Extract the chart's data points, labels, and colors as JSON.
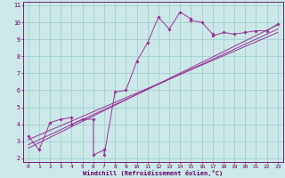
{
  "xlabel": "Windchill (Refroidissement éolien,°C)",
  "bg_color": "#cce8e8",
  "grid_color": "#99cccc",
  "line_color": "#993399",
  "spine_color": "#660066",
  "xlim": [
    -0.5,
    23.5
  ],
  "ylim": [
    1.8,
    11.2
  ],
  "xticks": [
    0,
    1,
    2,
    3,
    4,
    5,
    6,
    7,
    8,
    9,
    10,
    11,
    12,
    13,
    14,
    15,
    16,
    17,
    18,
    19,
    20,
    21,
    22,
    23
  ],
  "yticks": [
    2,
    3,
    4,
    5,
    6,
    7,
    8,
    9,
    10,
    11
  ],
  "scatter_x": [
    0,
    1,
    2,
    3,
    4,
    4,
    5,
    6,
    6,
    7,
    7,
    8,
    9,
    10,
    11,
    12,
    13,
    14,
    15,
    15,
    16,
    17,
    17,
    18,
    19,
    20,
    21,
    22,
    23
  ],
  "scatter_y": [
    3.3,
    2.5,
    4.1,
    4.3,
    4.4,
    4.0,
    4.3,
    4.3,
    2.2,
    2.5,
    2.2,
    5.9,
    6.0,
    7.7,
    8.8,
    10.3,
    9.6,
    10.6,
    10.2,
    10.1,
    10.0,
    9.3,
    9.2,
    9.4,
    9.3,
    9.4,
    9.5,
    9.5,
    9.9
  ],
  "reg_lines": [
    {
      "x": [
        0,
        23
      ],
      "y": [
        3.1,
        9.4
      ]
    },
    {
      "x": [
        0,
        23
      ],
      "y": [
        2.8,
        9.6
      ]
    },
    {
      "x": [
        0,
        23
      ],
      "y": [
        2.6,
        9.85
      ]
    }
  ],
  "tick_fontsize": 4.5,
  "xlabel_fontsize": 5.0
}
